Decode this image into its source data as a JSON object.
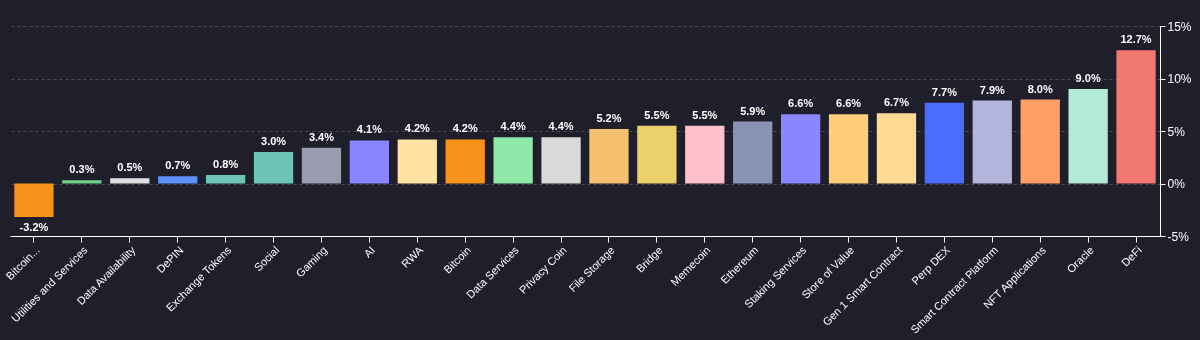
{
  "chart_data": {
    "type": "bar",
    "categories": [
      "Bitcoin...",
      "Utilities and Services",
      "Data Availability",
      "DePIN",
      "Exchange Tokens",
      "Social",
      "Gaming",
      "AI",
      "RWA",
      "Bitcoin",
      "Data Services",
      "Privacy Coin",
      "File Storage",
      "Bridge",
      "Memecoin",
      "Ethereum",
      "Staking Services",
      "Store of Value",
      "Gen 1 Smart Contract",
      "Perp DEX",
      "Smart Contract Platform",
      "NFT Applications",
      "Oracle",
      "DeFi"
    ],
    "values": [
      -3.2,
      0.3,
      0.5,
      0.7,
      0.8,
      3.0,
      3.4,
      4.1,
      4.2,
      4.2,
      4.4,
      4.4,
      5.2,
      5.5,
      5.5,
      5.9,
      6.6,
      6.6,
      6.7,
      7.7,
      7.9,
      8.0,
      9.0,
      12.7
    ],
    "value_labels": [
      "-3.2%",
      "0.3%",
      "0.5%",
      "0.7%",
      "0.8%",
      "3.0%",
      "3.4%",
      "4.1%",
      "4.2%",
      "4.2%",
      "4.4%",
      "4.4%",
      "5.2%",
      "5.5%",
      "5.5%",
      "5.9%",
      "6.6%",
      "6.6%",
      "6.7%",
      "7.7%",
      "7.9%",
      "8.0%",
      "9.0%",
      "12.7%"
    ],
    "colors": [
      "#f7931a",
      "#6fd48a",
      "#e0e0e0",
      "#5b8ff9",
      "#6cc4b4",
      "#6cc4b4",
      "#9b9bb0",
      "#8a86ff",
      "#ffe1a3",
      "#f7931a",
      "#8ee8a8",
      "#d9d9d9",
      "#f5c170",
      "#ecd06a",
      "#ffc0cb",
      "#8a93b5",
      "#8a86ff",
      "#ffcd7a",
      "#ffdb91",
      "#4a6cff",
      "#b3b5dc",
      "#ff9e66",
      "#b3ead5",
      "#f07870"
    ],
    "ylim": [
      -5,
      15
    ],
    "yticks": [
      {
        "value": -5,
        "label": "-5%"
      },
      {
        "value": 0,
        "label": "0%"
      },
      {
        "value": 5,
        "label": "5%"
      },
      {
        "value": 10,
        "label": "10%"
      },
      {
        "value": 15,
        "label": "15%"
      }
    ],
    "grid": "y"
  }
}
